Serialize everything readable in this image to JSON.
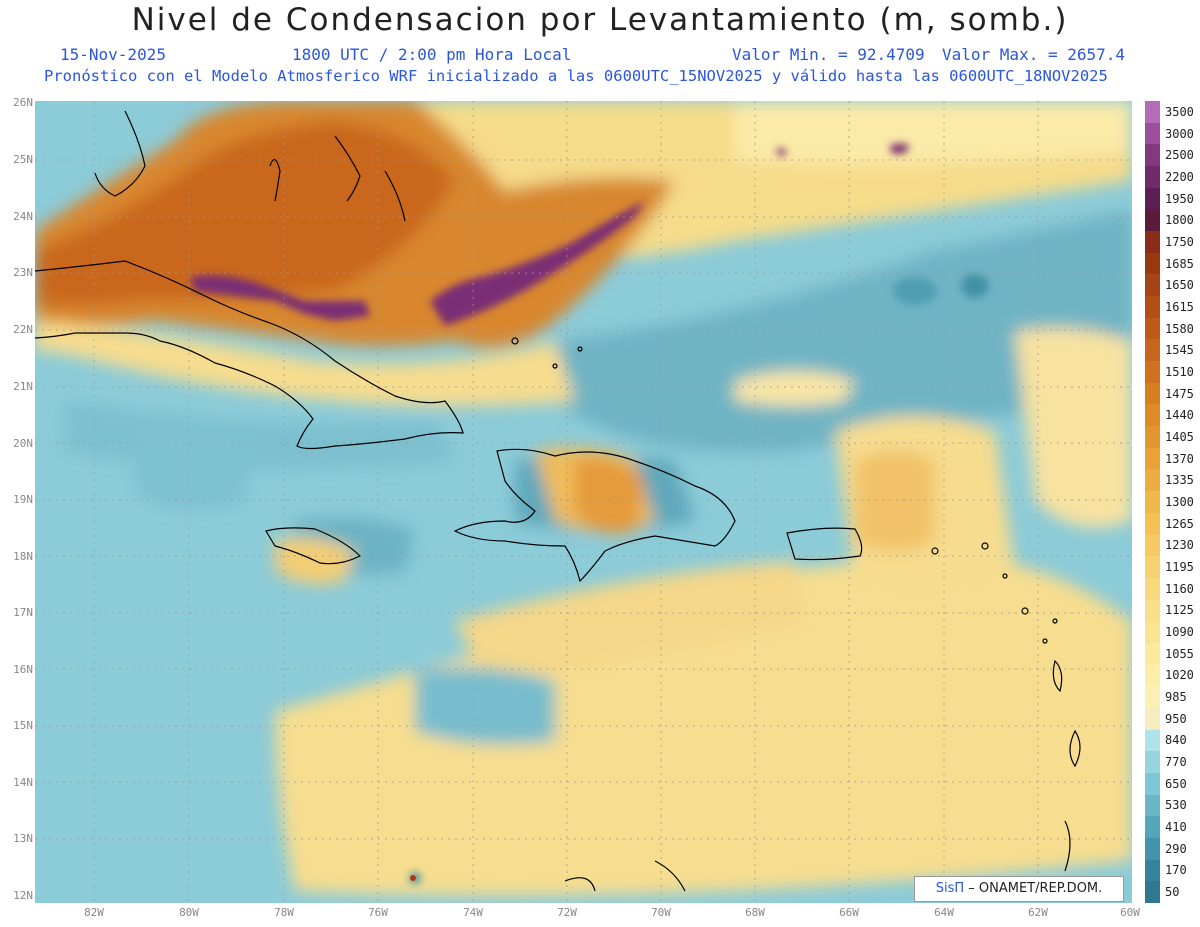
{
  "title": "Nivel de Condensacion por Levantamiento (m, somb.)",
  "subtitle": {
    "date": "15-Nov-2025",
    "time": "1800 UTC / 2:00 pm Hora Local",
    "min": "Valor Min. = 92.4709",
    "max": "Valor Max. = 2657.4",
    "model_line": "Pronóstico con el Modelo Atmosferico WRF inicializado a las 0600UTC_15NOV2025 y válido hasta las  0600UTC_18NOV2025"
  },
  "lat_labels": [
    "26N",
    "25N",
    "24N",
    "23N",
    "22N",
    "21N",
    "20N",
    "19N",
    "18N",
    "17N",
    "16N",
    "15N",
    "14N",
    "13N",
    "12N"
  ],
  "lon_labels": [
    "82W",
    "80W",
    "78W",
    "76W",
    "74W",
    "72W",
    "70W",
    "68W",
    "66W",
    "64W",
    "62W",
    "60W"
  ],
  "colorbar": {
    "labels": [
      "3500",
      "3000",
      "2500",
      "2200",
      "1950",
      "1800",
      "1750",
      "1685",
      "1650",
      "1615",
      "1580",
      "1545",
      "1510",
      "1475",
      "1440",
      "1405",
      "1370",
      "1335",
      "1300",
      "1265",
      "1230",
      "1195",
      "1160",
      "1125",
      "1090",
      "1055",
      "1020",
      "985",
      "950",
      "840",
      "770",
      "650",
      "530",
      "410",
      "290",
      "170",
      "50"
    ],
    "colors": [
      "#b46cba",
      "#9a4f9c",
      "#84397f",
      "#6f2a6a",
      "#5c1f55",
      "#5a1c3c",
      "#8a2c1a",
      "#9a3812",
      "#a54414",
      "#b24f16",
      "#bd5a18",
      "#c6661c",
      "#cf721f",
      "#d77e22",
      "#de8a28",
      "#e4962e",
      "#e8a236",
      "#ecad40",
      "#efb84b",
      "#f2c257",
      "#f5ca64",
      "#f7d270",
      "#f8d97c",
      "#f9df88",
      "#fae493",
      "#fbe99e",
      "#fcedaa",
      "#fcf0b5",
      "#f7ecc0",
      "#aee3ea",
      "#96d5e0",
      "#7fc6d4",
      "#68b6c6",
      "#53a5b8",
      "#4294aa",
      "#35849b",
      "#2e7890"
    ]
  },
  "credit": {
    "sis": "SisΠ",
    "org": " – ONAMET/REP.DOM."
  }
}
